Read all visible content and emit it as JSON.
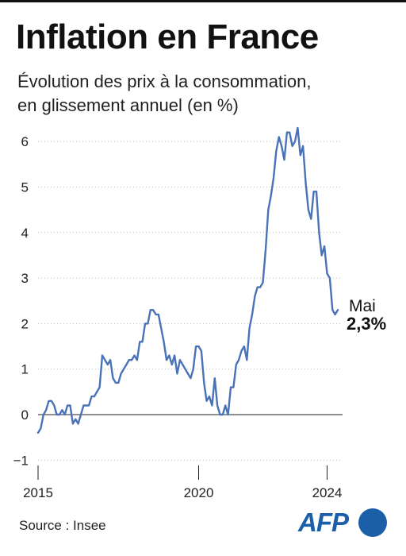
{
  "header": {
    "title": "Inflation en France",
    "subtitle_line1": "Évolution des prix à la consommation,",
    "subtitle_line2": "en glissement annuel (en %)"
  },
  "footer": {
    "source": "Source : Insee",
    "logo_text": "AFP"
  },
  "annotation": {
    "month": "Mai",
    "value": "2,3%"
  },
  "colors": {
    "line": "#4a72b8",
    "axis": "#222222",
    "grid": "#bbbbbb",
    "brand": "#1a5fa8"
  },
  "chart_data": {
    "type": "line",
    "title": "Inflation en France",
    "subtitle": "Évolution des prix à la consommation, en glissement annuel (en %)",
    "xlabel": "",
    "ylabel": "",
    "x_start": "2015-01",
    "x_end": "2024-05",
    "x_ticks": [
      {
        "value": 2015.0,
        "label": "2015"
      },
      {
        "value": 2020.0,
        "label": "2020"
      },
      {
        "value": 2024.0,
        "label": "2024"
      }
    ],
    "y_ticks": [
      -1,
      0,
      1,
      2,
      3,
      4,
      5,
      6
    ],
    "y_tick_labels": [
      "−1",
      "0",
      "1",
      "2",
      "3",
      "4",
      "5",
      "6"
    ],
    "ylim": [
      -1,
      6.6
    ],
    "grid": "horizontal dotted",
    "series": [
      {
        "values": [
          -0.4,
          -0.3,
          0.0,
          0.1,
          0.3,
          0.3,
          0.2,
          0.0,
          0.0,
          0.1,
          0.0,
          0.2,
          0.2,
          -0.2,
          -0.1,
          -0.2,
          0.0,
          0.2,
          0.2,
          0.2,
          0.4,
          0.4,
          0.5,
          0.6,
          1.3,
          1.2,
          1.1,
          1.2,
          0.8,
          0.7,
          0.7,
          0.9,
          1.0,
          1.1,
          1.2,
          1.2,
          1.3,
          1.2,
          1.6,
          1.6,
          2.0,
          2.0,
          2.3,
          2.3,
          2.2,
          2.2,
          1.9,
          1.6,
          1.2,
          1.3,
          1.1,
          1.3,
          0.9,
          1.2,
          1.1,
          1.0,
          0.9,
          0.8,
          1.0,
          1.5,
          1.5,
          1.4,
          0.7,
          0.3,
          0.4,
          0.2,
          0.8,
          0.2,
          0.0,
          0.0,
          0.2,
          0.0,
          0.6,
          0.6,
          1.1,
          1.2,
          1.4,
          1.5,
          1.2,
          1.9,
          2.2,
          2.6,
          2.8,
          2.8,
          2.9,
          3.6,
          4.5,
          4.8,
          5.2,
          5.8,
          6.1,
          5.9,
          5.6,
          6.2,
          6.2,
          5.9,
          6.0,
          6.3,
          5.7,
          5.9,
          5.1,
          4.5,
          4.3,
          4.9,
          4.9,
          4.0,
          3.5,
          3.7,
          3.1,
          3.0,
          2.3,
          2.2,
          2.3
        ]
      }
    ]
  }
}
